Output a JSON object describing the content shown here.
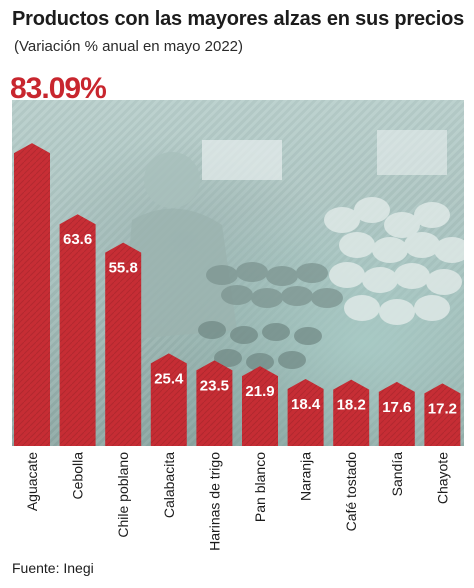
{
  "title": "Productos con las mayores alzas en sus precios",
  "subtitle": "(Variación % anual en mayo 2022)",
  "source": "Fuente: Inegi",
  "colors": {
    "bar": "#c8262e",
    "bar_dark": "#9e1a20",
    "highlight_label": "#c8262e",
    "text": "#1c1c1c"
  },
  "chart_data": {
    "type": "bar",
    "title": "Productos con las mayores alzas en sus precios",
    "subtitle": "(Variación % anual en mayo 2022)",
    "categories": [
      "Aguacate",
      "Cebolla",
      "Chile poblano",
      "Calabacita",
      "Harinas de trigo",
      "Pan blanco",
      "Naranja",
      "Café tostado",
      "Sandía",
      "Chayote"
    ],
    "values": [
      83.09,
      63.6,
      55.8,
      25.4,
      23.5,
      21.9,
      18.4,
      18.2,
      17.6,
      17.2
    ],
    "value_labels": [
      "83.09%",
      "63.6",
      "55.8",
      "25.4",
      "23.5",
      "21.9",
      "18.4",
      "18.2",
      "17.6",
      "17.2"
    ],
    "ylim": [
      0,
      90
    ],
    "grid": false,
    "legend": "none"
  }
}
